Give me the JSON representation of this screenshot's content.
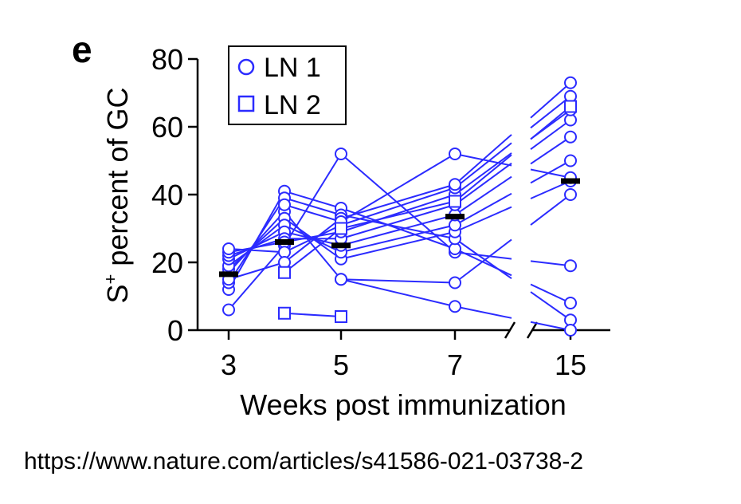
{
  "panel_label": "e",
  "source_url": "https://www.nature.com/articles/s41586-021-03738-2",
  "chart_data": {
    "type": "scatter",
    "xlabel": "Weeks post immunization",
    "ylabel_main": "S",
    "ylabel_sup": "+",
    "ylabel_rest": " percent of GC",
    "ylim": [
      0,
      80
    ],
    "yticks": [
      "0",
      "20",
      "40",
      "60",
      "80"
    ],
    "x_ticks": [
      "3",
      "5",
      "7",
      "15"
    ],
    "x_tick_values": [
      3,
      5,
      7,
      15
    ],
    "axis_break": "between 7 and 15",
    "grid": false,
    "legend": {
      "position": "top-left",
      "entries": [
        {
          "label": "LN 1",
          "marker": "circle"
        },
        {
          "label": "LN 2",
          "marker": "square"
        }
      ]
    },
    "color": "#2b2bff",
    "median_color": "#000000",
    "medians": [
      {
        "x": 3,
        "y": 16.5
      },
      {
        "x": 4,
        "y": 26
      },
      {
        "x": 5,
        "y": 25
      },
      {
        "x": 7,
        "y": 33.5
      },
      {
        "x": 15,
        "y": 44
      }
    ],
    "series": [
      {
        "marker": "circle",
        "points": [
          [
            3,
            6
          ],
          [
            4,
            25
          ],
          [
            5,
            52
          ],
          [
            7,
            23
          ],
          [
            15,
            19
          ]
        ]
      },
      {
        "marker": "circle",
        "points": [
          [
            3,
            12
          ],
          [
            4,
            41
          ],
          [
            5,
            36
          ],
          [
            7,
            24
          ],
          [
            15,
            8
          ]
        ]
      },
      {
        "marker": "circle",
        "points": [
          [
            3,
            14
          ],
          [
            4,
            39
          ],
          [
            5,
            34
          ],
          [
            7,
            27
          ],
          [
            15,
            3
          ]
        ]
      },
      {
        "marker": "circle",
        "points": [
          [
            3,
            17
          ],
          [
            4,
            35
          ],
          [
            5,
            15
          ],
          [
            7,
            14
          ],
          [
            15,
            40
          ]
        ]
      },
      {
        "marker": "circle",
        "points": [
          [
            3,
            18
          ],
          [
            4,
            33
          ],
          [
            5,
            21
          ],
          [
            7,
            29
          ],
          [
            15,
            44
          ]
        ]
      },
      {
        "marker": "circle",
        "points": [
          [
            3,
            19
          ],
          [
            4,
            31
          ],
          [
            5,
            23
          ],
          [
            7,
            31
          ],
          [
            15,
            50
          ]
        ]
      },
      {
        "marker": "circle",
        "points": [
          [
            3,
            21
          ],
          [
            4,
            29
          ],
          [
            5,
            25
          ],
          [
            7,
            34
          ],
          [
            15,
            57
          ]
        ]
      },
      {
        "marker": "circle",
        "points": [
          [
            3,
            22
          ],
          [
            4,
            27
          ],
          [
            5,
            27
          ],
          [
            7,
            37
          ],
          [
            15,
            62
          ]
        ]
      },
      {
        "marker": "circle",
        "points": [
          [
            3,
            23
          ],
          [
            4,
            26
          ],
          [
            5,
            29
          ],
          [
            7,
            40
          ],
          [
            15,
            65
          ]
        ]
      },
      {
        "marker": "circle",
        "points": [
          [
            3,
            24
          ],
          [
            4,
            23
          ],
          [
            5,
            31
          ],
          [
            7,
            42
          ],
          [
            15,
            69
          ]
        ]
      },
      {
        "marker": "circle",
        "points": [
          [
            3,
            15
          ],
          [
            4,
            20
          ],
          [
            5,
            33
          ],
          [
            7,
            43
          ],
          [
            15,
            73
          ]
        ]
      },
      {
        "marker": "circle",
        "points": [
          [
            4,
            37
          ],
          [
            5,
            32
          ],
          [
            7,
            52
          ],
          [
            15,
            45
          ]
        ]
      },
      {
        "marker": "square",
        "points": [
          [
            4,
            17
          ],
          [
            5,
            30
          ],
          [
            7,
            38
          ],
          [
            15,
            66
          ]
        ]
      },
      {
        "marker": "square",
        "points": [
          [
            4,
            5
          ],
          [
            5,
            4
          ]
        ]
      },
      {
        "marker": "circle",
        "points": [
          [
            5,
            15
          ],
          [
            7,
            7
          ],
          [
            15,
            0
          ]
        ]
      }
    ]
  }
}
